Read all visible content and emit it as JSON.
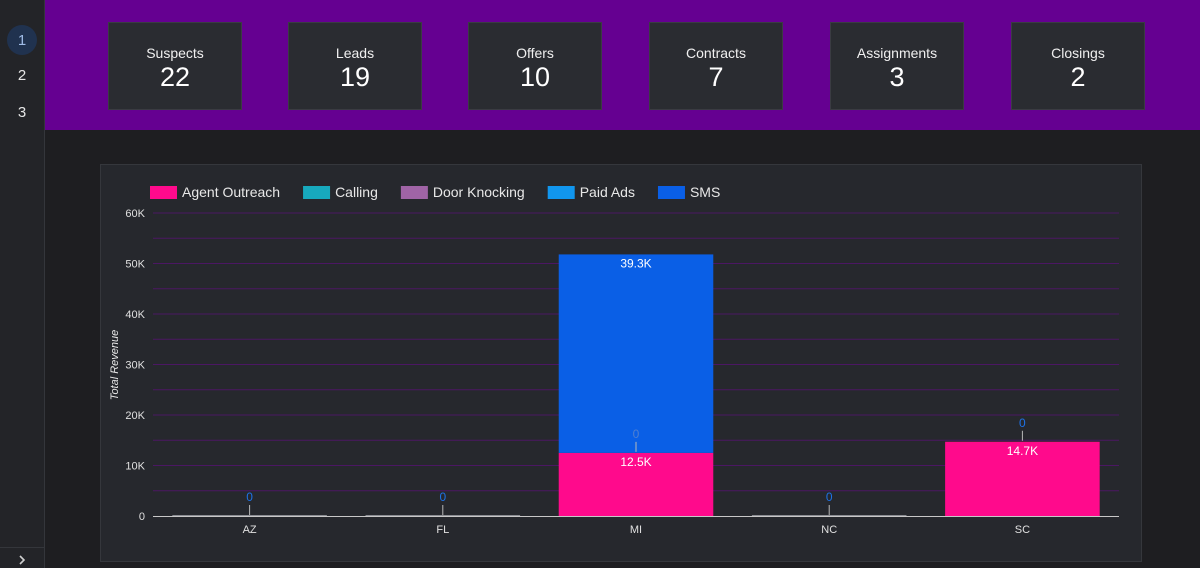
{
  "sidebar": {
    "pages": [
      {
        "label": "1",
        "active": true
      },
      {
        "label": "2",
        "active": false
      },
      {
        "label": "3",
        "active": false
      }
    ],
    "expand_icon": "chevron-right-icon"
  },
  "banner_color": "#650091",
  "kpis": [
    {
      "label": "Suspects",
      "value": "22"
    },
    {
      "label": "Leads",
      "value": "19"
    },
    {
      "label": "Offers",
      "value": "10"
    },
    {
      "label": "Contracts",
      "value": "7"
    },
    {
      "label": "Assignments",
      "value": "3"
    },
    {
      "label": "Closings",
      "value": "2"
    }
  ],
  "chart_data": {
    "type": "bar",
    "stacked": true,
    "categories": [
      "AZ",
      "FL",
      "MI",
      "NC",
      "SC"
    ],
    "series": [
      {
        "name": "Agent Outreach",
        "color": "#ff0a8c",
        "values": [
          0,
          0,
          12500,
          0,
          14700
        ],
        "labels": [
          "",
          "",
          "12.5K",
          "",
          "14.7K"
        ]
      },
      {
        "name": "Calling",
        "color": "#17a9bd",
        "values": [
          0,
          0,
          0,
          0,
          0
        ],
        "labels": [
          "",
          "",
          "",
          "",
          ""
        ]
      },
      {
        "name": "Door Knocking",
        "color": "#a064a6",
        "values": [
          0,
          0,
          0,
          0,
          0
        ],
        "labels": [
          "",
          "",
          "",
          "",
          ""
        ]
      },
      {
        "name": "Paid Ads",
        "color": "#1196ee",
        "values": [
          0,
          0,
          0,
          0,
          0
        ],
        "labels": [
          "",
          "",
          "",
          "",
          ""
        ]
      },
      {
        "name": "SMS",
        "color": "#0a5fe6",
        "values": [
          0,
          0,
          39300,
          0,
          0
        ],
        "labels": [
          "",
          "",
          "39.3K",
          "",
          ""
        ]
      }
    ],
    "zero_labels": [
      "0",
      "0",
      "0",
      "0",
      "0"
    ],
    "ylabel": "Total Revenue",
    "xlabel": "",
    "ylim": [
      0,
      60000
    ],
    "yticks": [
      "0",
      "10K",
      "20K",
      "30K",
      "40K",
      "50K",
      "60K"
    ],
    "grid": true,
    "legend_position": "top-left"
  }
}
